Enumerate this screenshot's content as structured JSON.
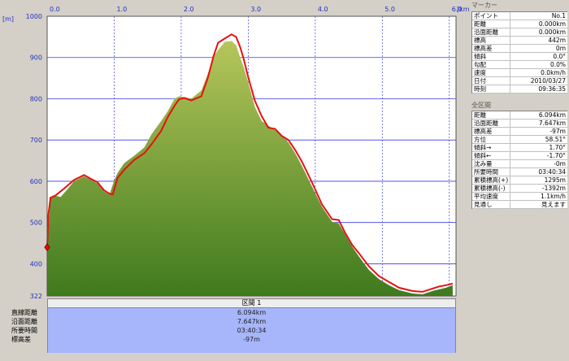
{
  "chart_data": {
    "type": "area",
    "x_unit_label": "[km]",
    "y_unit_label": "[m]",
    "xlim": [
      0,
      6.1
    ],
    "ylim": [
      322,
      1000
    ],
    "x_ticks": [
      "0.0",
      "1.0",
      "2.0",
      "3.0",
      "4.0",
      "5.0",
      "6.0"
    ],
    "y_ticks": [
      "1000",
      "900",
      "800",
      "700",
      "600",
      "500",
      "400",
      "322"
    ],
    "grid": true,
    "colors": {
      "plot_bg": "#ffffff",
      "grid": "#3a3ae6",
      "area_top": "#b5c65a",
      "area_bottom": "#3f7a1e",
      "route_line": "#e81010",
      "marker": "#ff0000"
    },
    "series": [
      {
        "values_x": [
          0.0,
          0.05,
          0.1,
          0.2,
          0.3,
          0.4,
          0.55,
          0.65,
          0.75,
          0.85,
          0.93,
          1.0,
          1.05,
          1.15,
          1.3,
          1.45,
          1.55,
          1.7,
          1.8,
          1.9,
          1.97,
          2.05,
          2.15,
          2.3,
          2.4,
          2.48,
          2.55,
          2.65,
          2.75,
          2.82,
          2.88,
          2.93,
          3.0,
          3.1,
          3.2,
          3.3,
          3.4,
          3.5,
          3.6,
          3.7,
          3.8,
          3.95,
          4.1,
          4.25,
          4.35,
          4.45,
          4.55,
          4.65,
          4.8,
          4.95,
          5.1,
          5.25,
          5.45,
          5.6,
          5.75,
          5.85,
          5.95,
          6.05
        ],
        "values_y": [
          430,
          560,
          566,
          562,
          580,
          600,
          612,
          604,
          595,
          575,
          568,
          602,
          620,
          644,
          662,
          682,
          712,
          746,
          770,
          800,
          806,
          804,
          800,
          820,
          862,
          902,
          918,
          938,
          940,
          930,
          900,
          878,
          840,
          780,
          746,
          735,
          724,
          712,
          694,
          668,
          638,
          588,
          538,
          502,
          498,
          470,
          442,
          418,
          385,
          363,
          348,
          336,
          328,
          326,
          334,
          338,
          342,
          348
        ]
      },
      {
        "values_x": [
          0.0,
          0.02,
          0.05,
          0.12,
          0.25,
          0.4,
          0.55,
          0.65,
          0.75,
          0.85,
          0.93,
          0.98,
          1.05,
          1.15,
          1.3,
          1.45,
          1.55,
          1.7,
          1.8,
          1.9,
          1.97,
          2.05,
          2.15,
          2.3,
          2.4,
          2.48,
          2.55,
          2.65,
          2.75,
          2.82,
          2.88,
          2.93,
          3.0,
          3.1,
          3.2,
          3.3,
          3.4,
          3.5,
          3.6,
          3.7,
          3.8,
          3.95,
          4.1,
          4.25,
          4.35,
          4.45,
          4.55,
          4.65,
          4.8,
          4.95,
          5.1,
          5.25,
          5.45,
          5.6,
          5.75,
          5.85,
          5.95,
          6.05
        ],
        "values_y": [
          440,
          520,
          560,
          565,
          582,
          603,
          615,
          606,
          598,
          578,
          570,
          568,
          608,
          628,
          652,
          668,
          688,
          722,
          756,
          783,
          799,
          802,
          796,
          806,
          852,
          902,
          936,
          946,
          956,
          950,
          925,
          898,
          852,
          795,
          758,
          730,
          727,
          710,
          700,
          676,
          648,
          598,
          544,
          508,
          506,
          474,
          446,
          426,
          394,
          370,
          356,
          342,
          334,
          332,
          340,
          345,
          348,
          352
        ]
      }
    ]
  },
  "marker_panel": {
    "header": "マーカー",
    "rows": [
      {
        "k": "ポイント",
        "v": "No.1"
      },
      {
        "k": "距離",
        "v": "0.000km"
      },
      {
        "k": "沿面距離",
        "v": "0.000km"
      },
      {
        "k": "標高",
        "v": "442m"
      },
      {
        "k": "標高差",
        "v": "0m"
      },
      {
        "k": "傾斜",
        "v": "0.0°"
      },
      {
        "k": "勾配",
        "v": "0.0%"
      },
      {
        "k": "速度",
        "v": "0.0km/h"
      },
      {
        "k": "日付",
        "v": "2010/03/27"
      },
      {
        "k": "時刻",
        "v": "09:36:35"
      }
    ]
  },
  "all_section_panel": {
    "header": "全区間",
    "rows": [
      {
        "k": "距離",
        "v": "6.094km"
      },
      {
        "k": "沿面距離",
        "v": "7.647km"
      },
      {
        "k": "標高差",
        "v": "-97m"
      },
      {
        "k": "方位",
        "v": "58.51°"
      },
      {
        "k": "傾斜→",
        "v": "1.70°"
      },
      {
        "k": "傾斜←",
        "v": "-1.70°"
      },
      {
        "k": "沈み量",
        "v": "-0m"
      },
      {
        "k": "所要時間",
        "v": "03:40:34"
      },
      {
        "k": "累積標高(+)",
        "v": "1295m"
      },
      {
        "k": "累積標高(-)",
        "v": "-1392m"
      },
      {
        "k": "平均速度",
        "v": "1.1km/h"
      },
      {
        "k": "見通し",
        "v": "見えます"
      }
    ]
  },
  "section": {
    "title": "区間 1",
    "labels": [
      "直線距離",
      "沿面距離",
      "所要時間",
      "標高差"
    ],
    "values": [
      "6.094km",
      "7.647km",
      "03:40:34",
      "-97m"
    ]
  }
}
